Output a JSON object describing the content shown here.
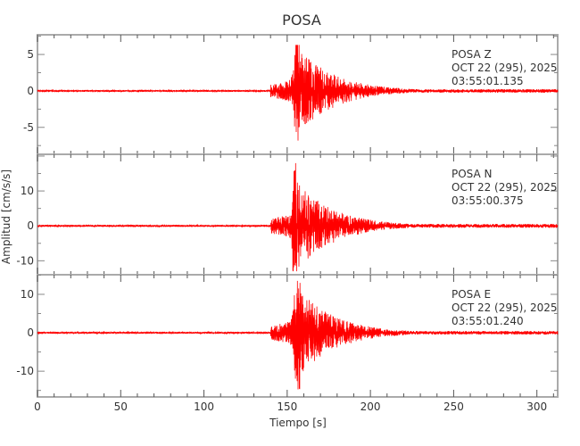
{
  "chart_data": {
    "type": "line",
    "title": "POSA",
    "xlabel": "Tiempo [s]",
    "ylabel": "Amplitud [cm/s/s]",
    "xlim": [
      0,
      312.5
    ],
    "xticks": [
      0,
      50,
      100,
      150,
      200,
      250,
      300
    ],
    "grid": false,
    "line_color": "#ff0000",
    "panels": [
      {
        "station": "POSA",
        "component": "Z",
        "label_line1": "POSA   Z",
        "label_line2": "OCT 22 (295), 2025",
        "label_line3": "03:55:01.135",
        "ylim": [
          -8.7,
          7.7
        ],
        "yticks": [
          -5,
          0,
          5
        ],
        "onset_s": 140,
        "peak_time_s": 156,
        "max_amplitude": 6.3,
        "min_amplitude": -8.2
      },
      {
        "station": "POSA",
        "component": "N",
        "label_line1": "POSA   N",
        "label_line2": "OCT 22 (295), 2025",
        "label_line3": "03:55:00.375",
        "ylim": [
          -14,
          20.5
        ],
        "yticks": [
          -10,
          0,
          10
        ],
        "onset_s": 140,
        "peak_time_s": 154,
        "max_amplitude": 19,
        "min_amplitude": -13
      },
      {
        "station": "POSA",
        "component": "E",
        "label_line1": "POSA   E",
        "label_line2": "OCT 22 (295), 2025",
        "label_line3": "03:55:01.240",
        "ylim": [
          -16.7,
          15.1
        ],
        "yticks": [
          -10,
          0,
          10
        ],
        "onset_s": 140,
        "peak_time_s": 156,
        "max_amplitude": 13.5,
        "min_amplitude": -16
      }
    ]
  }
}
